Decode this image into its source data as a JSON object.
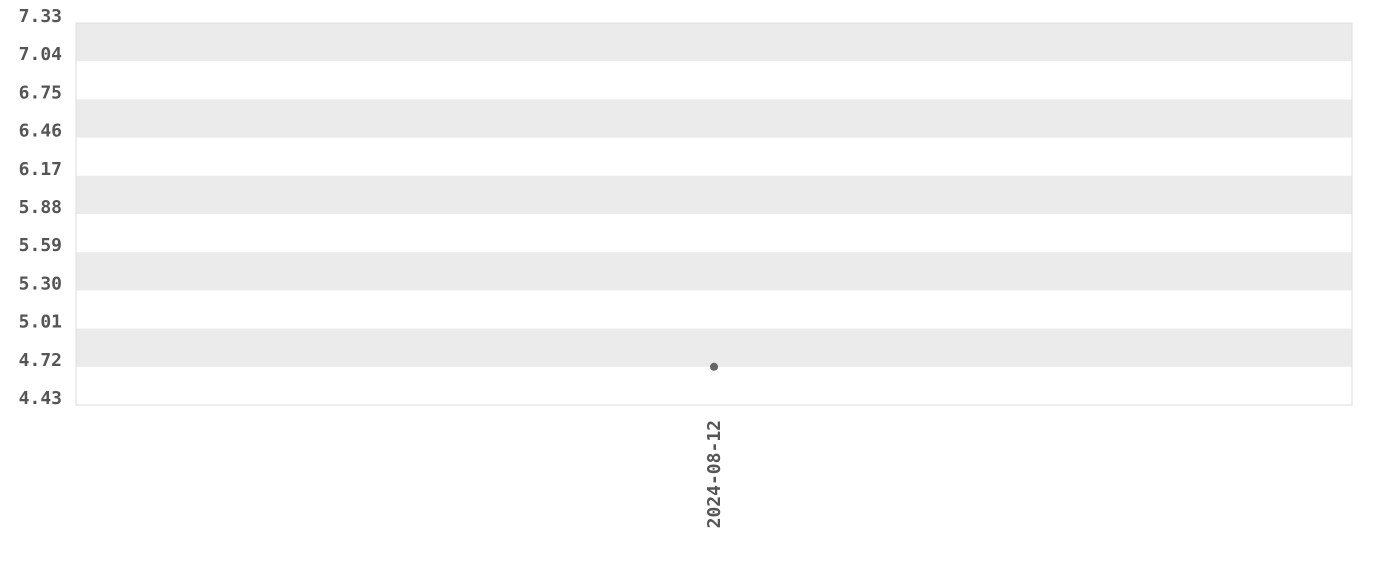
{
  "chart_data": {
    "type": "line",
    "categories": [
      "2024-08-12"
    ],
    "values": [
      4.72
    ],
    "color": "#666666",
    "ylim": [
      4.43,
      7.33
    ],
    "yticks": [
      4.43,
      4.72,
      5.01,
      {
        "value": 5.3,
        "label": "5.30"
      },
      5.59,
      5.88,
      6.17,
      6.46,
      6.75,
      7.04,
      7.33
    ],
    "grid": true
  }
}
